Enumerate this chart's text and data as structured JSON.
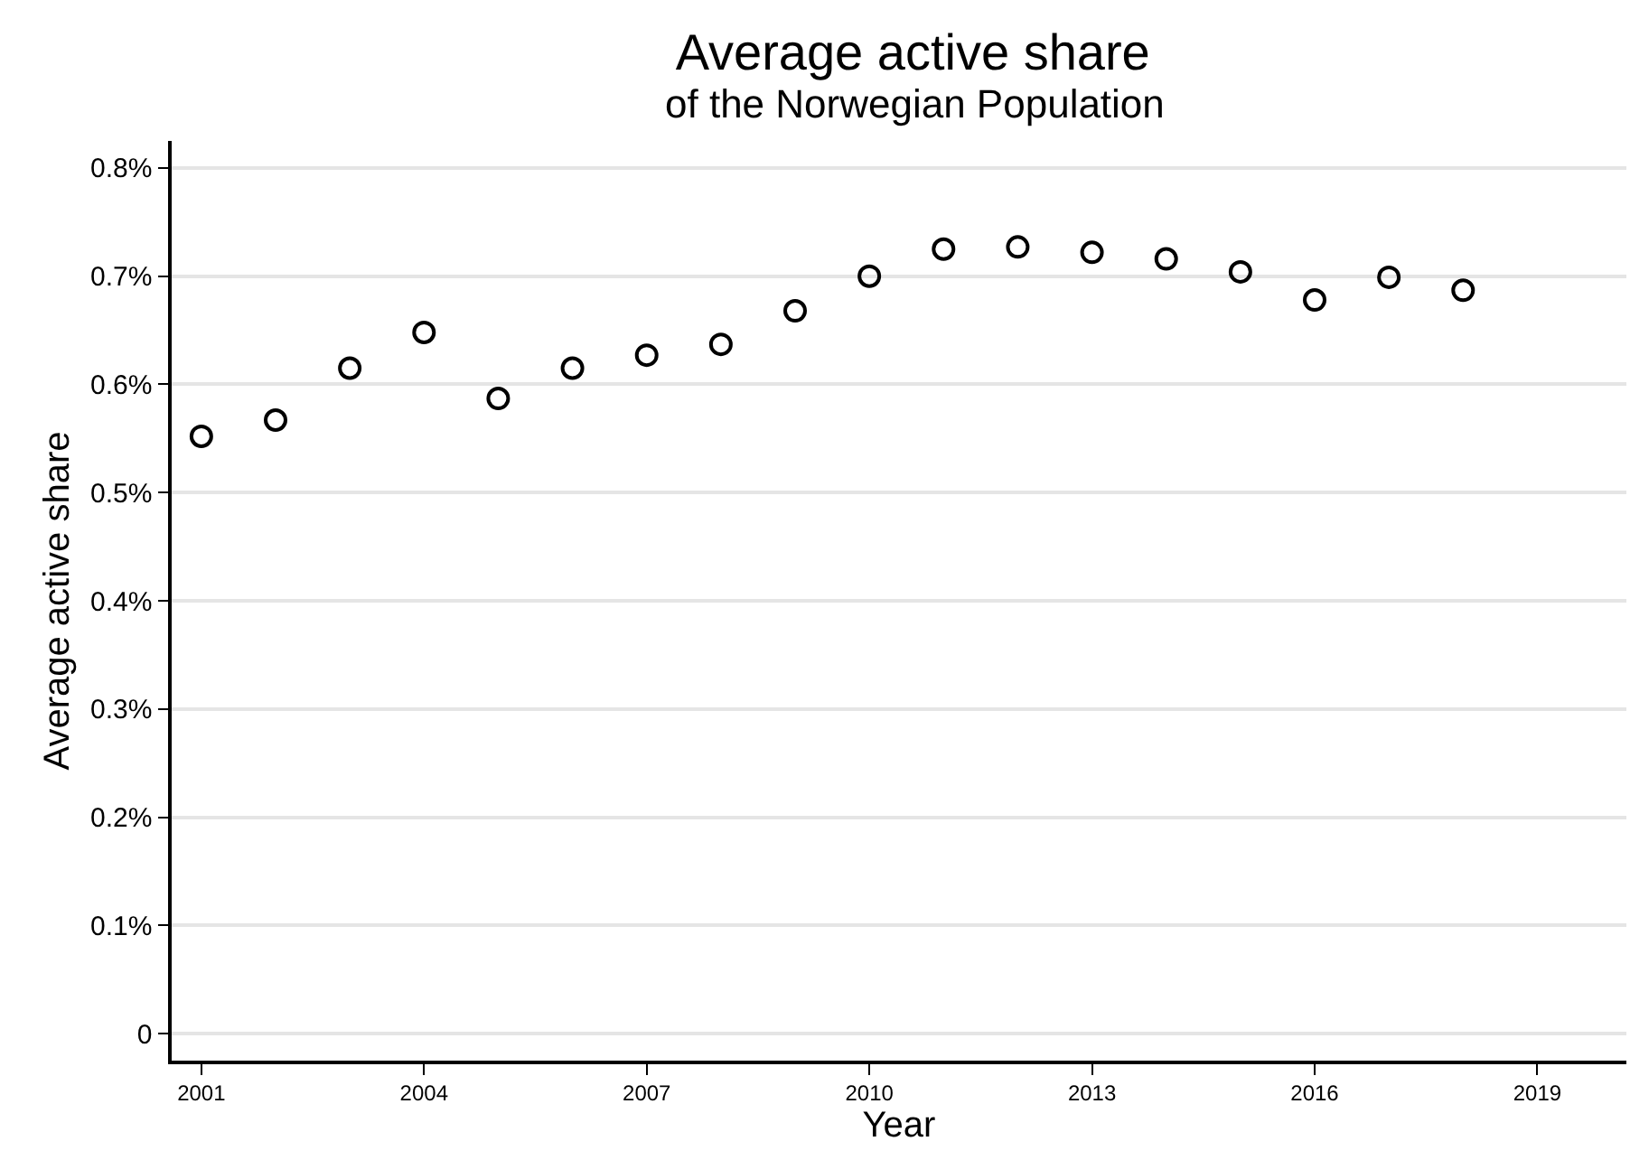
{
  "chart_data": {
    "type": "scatter",
    "title": "Average active share",
    "subtitle": "of the Norwegian Population",
    "xlabel": "Year",
    "ylabel": "Average active share",
    "x": [
      2001,
      2002,
      2003,
      2004,
      2005,
      2006,
      2007,
      2008,
      2009,
      2010,
      2011,
      2012,
      2013,
      2014,
      2015,
      2016,
      2017,
      2018
    ],
    "series": [
      {
        "color": "#000000",
        "values": [
          0.552,
          0.567,
          0.615,
          0.648,
          0.587,
          0.615,
          0.627,
          0.637,
          0.668,
          0.7,
          0.725,
          0.727,
          0.722,
          0.716,
          0.704,
          0.678,
          0.699,
          0.687
        ]
      }
    ],
    "xlim": [
      2000.6,
      2020.2
    ],
    "xticks": [
      2001,
      2004,
      2007,
      2010,
      2013,
      2016,
      2019
    ],
    "ylim": [
      -0.025,
      0.825
    ],
    "yticks": [
      0,
      {
        "value": 0.1,
        "label": "0.1%"
      },
      {
        "value": 0.2,
        "label": "0.2%"
      },
      {
        "value": 0.3,
        "label": "0.3%"
      },
      {
        "value": 0.4,
        "label": "0.4%"
      },
      {
        "value": 0.5,
        "label": "0.5%"
      },
      {
        "value": 0.6,
        "label": "0.6%"
      },
      {
        "value": 0.7,
        "label": "0.7%"
      },
      {
        "value": 0.8,
        "label": "0.8%"
      }
    ],
    "grid": "y",
    "marker": "circle"
  }
}
